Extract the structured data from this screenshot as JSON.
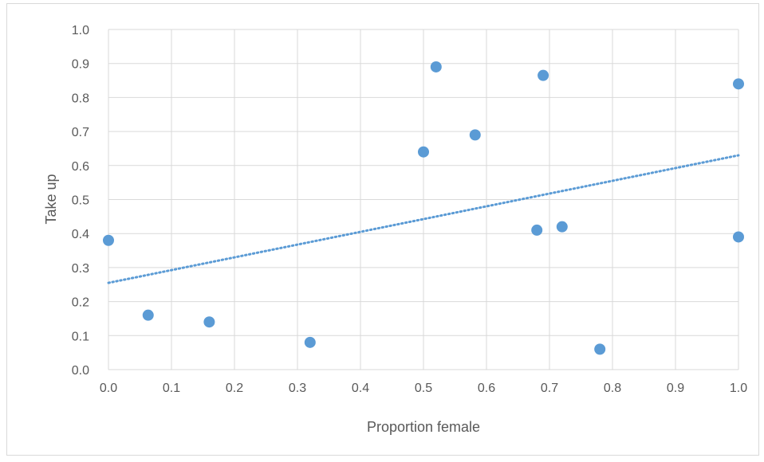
{
  "chart_data": {
    "type": "scatter",
    "title": "",
    "xlabel": "Proportion female",
    "ylabel": "Take up",
    "xlim": [
      0.0,
      1.0
    ],
    "ylim": [
      0.0,
      1.0
    ],
    "x_ticks": [
      "0.0",
      "0.1",
      "0.2",
      "0.3",
      "0.4",
      "0.5",
      "0.6",
      "0.7",
      "0.8",
      "0.9",
      "1.0"
    ],
    "y_ticks": [
      "0.0",
      "0.1",
      "0.2",
      "0.3",
      "0.4",
      "0.5",
      "0.6",
      "0.7",
      "0.8",
      "0.9",
      "1.0"
    ],
    "grid": true,
    "legend": "none",
    "series": [
      {
        "points": [
          {
            "x": 0.0,
            "y": 0.38
          },
          {
            "x": 0.063,
            "y": 0.16
          },
          {
            "x": 0.16,
            "y": 0.14
          },
          {
            "x": 0.32,
            "y": 0.08
          },
          {
            "x": 0.5,
            "y": 0.64
          },
          {
            "x": 0.52,
            "y": 0.89
          },
          {
            "x": 0.582,
            "y": 0.69
          },
          {
            "x": 0.68,
            "y": 0.41
          },
          {
            "x": 0.69,
            "y": 0.865
          },
          {
            "x": 0.72,
            "y": 0.42
          },
          {
            "x": 0.78,
            "y": 0.06
          },
          {
            "x": 1.0,
            "y": 0.84
          },
          {
            "x": 1.0,
            "y": 0.39
          }
        ]
      }
    ],
    "trendline": {
      "type": "linear",
      "style": "dotted",
      "x": [
        0.0,
        1.0
      ],
      "y": [
        0.255,
        0.63
      ]
    },
    "colors": {
      "marker": "#5b9bd5",
      "trendline": "#5b9bd5",
      "grid": "#d9d9d9",
      "text": "#595959"
    }
  }
}
